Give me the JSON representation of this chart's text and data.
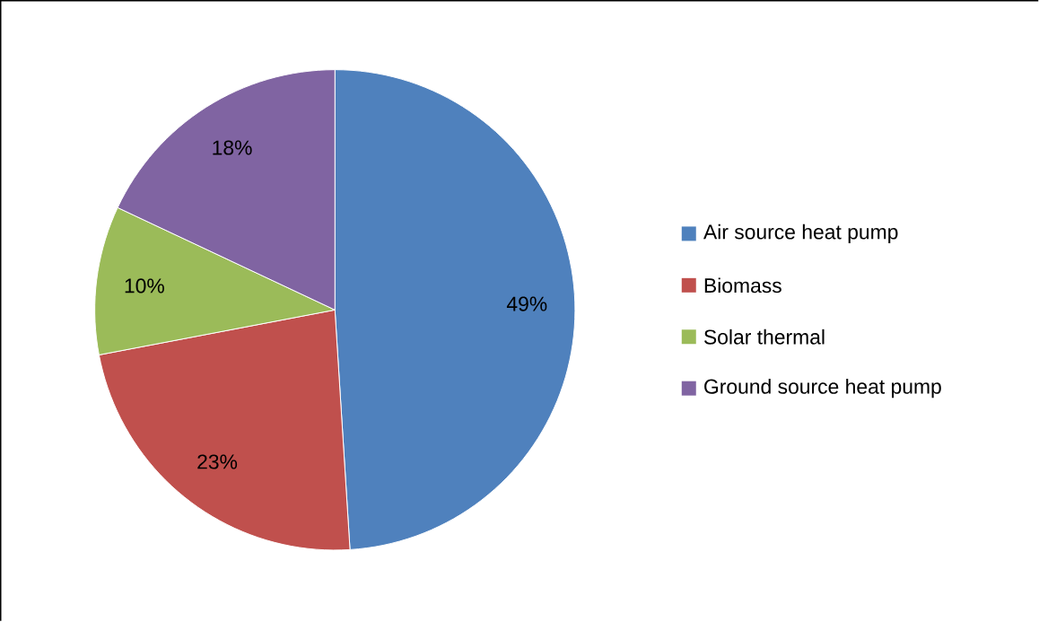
{
  "chart_data": {
    "type": "pie",
    "categories": [
      "Air source heat pump",
      "Biomass",
      "Solar thermal",
      "Ground source heat pump"
    ],
    "values": [
      49,
      23,
      10,
      18
    ],
    "colors": [
      "#4f81bd",
      "#c0504d",
      "#9bbb59",
      "#8064a2"
    ],
    "value_labels": [
      "49%",
      "23%",
      "10%",
      "18%"
    ],
    "legend": "right"
  }
}
